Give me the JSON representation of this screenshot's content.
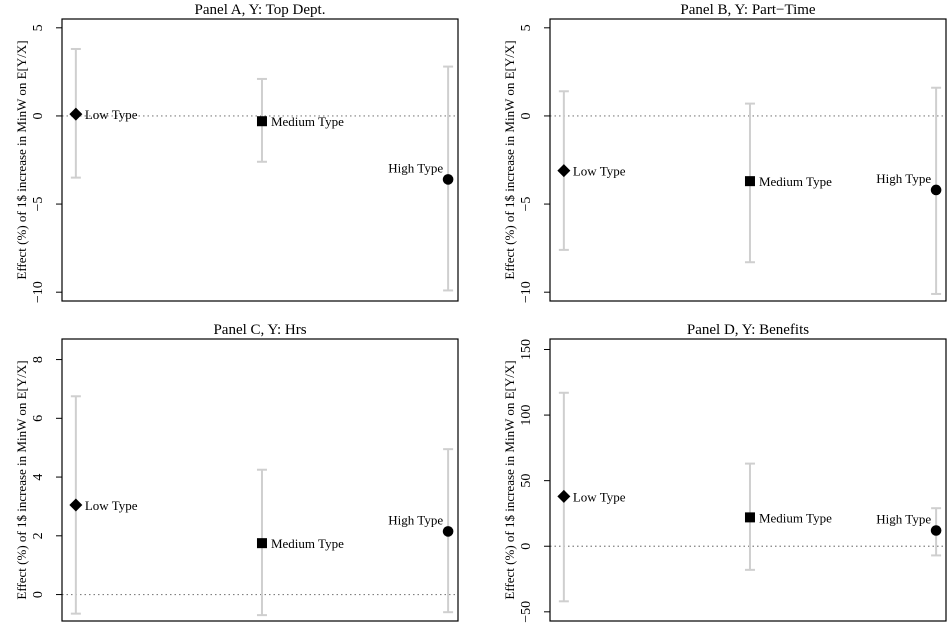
{
  "chart_data": [
    {
      "type": "scatter",
      "title": "Panel A, Y: Top Dept.",
      "ylabel": "Effect (%) of 1$ increase in MinW on E[Y/X]",
      "ylim": [
        -10.5,
        5.5
      ],
      "yticks": [
        -10,
        -5,
        0,
        5
      ],
      "reference_line": 0,
      "points": [
        {
          "label": "Low Type",
          "marker": "diamond",
          "estimate": 0.1,
          "ci": [
            -3.5,
            3.8
          ]
        },
        {
          "label": "Medium Type",
          "marker": "square",
          "estimate": -0.3,
          "ci": [
            -2.6,
            2.1
          ]
        },
        {
          "label": "High Type",
          "marker": "circle",
          "estimate": -3.6,
          "ci": [
            -9.9,
            2.8
          ]
        }
      ]
    },
    {
      "type": "scatter",
      "title": "Panel B, Y: Part−Time",
      "ylabel": "Effect (%) of 1$ increase in MinW on E[Y/X]",
      "ylim": [
        -10.5,
        5.5
      ],
      "yticks": [
        -10,
        -5,
        0,
        5
      ],
      "reference_line": 0,
      "points": [
        {
          "label": "Low Type",
          "marker": "diamond",
          "estimate": -3.1,
          "ci": [
            -7.6,
            1.4
          ]
        },
        {
          "label": "Medium Type",
          "marker": "square",
          "estimate": -3.7,
          "ci": [
            -8.3,
            0.7
          ]
        },
        {
          "label": "High Type",
          "marker": "circle",
          "estimate": -4.2,
          "ci": [
            -10.1,
            1.6
          ]
        }
      ]
    },
    {
      "type": "scatter",
      "title": "Panel C, Y: Hrs",
      "ylabel": "Effect (%) of 1$ increase in MinW on E[Y/X]",
      "ylim": [
        -0.9,
        8.7
      ],
      "yticks": [
        0,
        2,
        4,
        6,
        8
      ],
      "reference_line": 0,
      "points": [
        {
          "label": "Low Type",
          "marker": "diamond",
          "estimate": 3.05,
          "ci": [
            -0.65,
            6.75
          ]
        },
        {
          "label": "Medium Type",
          "marker": "square",
          "estimate": 1.75,
          "ci": [
            -0.7,
            4.25
          ]
        },
        {
          "label": "High Type",
          "marker": "circle",
          "estimate": 2.15,
          "ci": [
            -0.6,
            4.95
          ]
        }
      ]
    },
    {
      "type": "scatter",
      "title": "Panel D, Y: Benefits",
      "ylabel": "Effect (%) of 1$ increase in MinW on E[Y/X]",
      "ylim": [
        -57,
        158
      ],
      "yticks": [
        -50,
        0,
        50,
        100,
        150
      ],
      "reference_line": 0,
      "points": [
        {
          "label": "Low Type",
          "marker": "diamond",
          "estimate": 38,
          "ci": [
            -42,
            117
          ]
        },
        {
          "label": "Medium Type",
          "marker": "square",
          "estimate": 22,
          "ci": [
            -18,
            63
          ]
        },
        {
          "label": "High Type",
          "marker": "circle",
          "estimate": 12,
          "ci": [
            -7,
            29
          ]
        }
      ]
    }
  ]
}
